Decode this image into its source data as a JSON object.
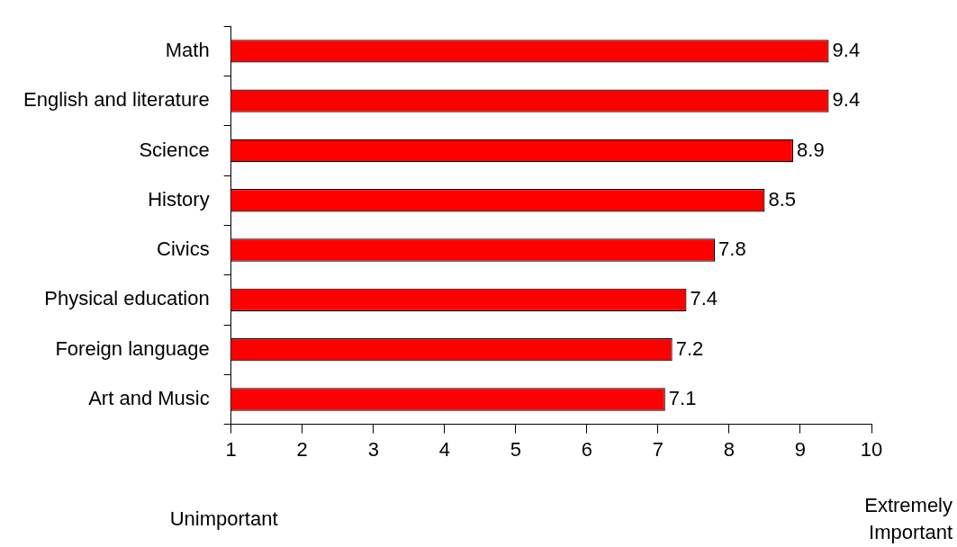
{
  "chart_data": {
    "type": "bar",
    "orientation": "horizontal",
    "categories": [
      "Math",
      "English and literature",
      "Science",
      "History",
      "Civics",
      "Physical education",
      "Foreign language",
      "Art and Music"
    ],
    "values": [
      9.4,
      9.4,
      8.9,
      8.5,
      7.8,
      7.4,
      7.2,
      7.1
    ],
    "color": "#ff0000",
    "xlim": [
      1,
      10
    ],
    "xticks": [
      1,
      2,
      3,
      4,
      5,
      6,
      7,
      8,
      9,
      10
    ],
    "data_labels": true,
    "grid": false,
    "legend": false,
    "annotations": [
      "Unimportant",
      "Extremely Important"
    ]
  }
}
